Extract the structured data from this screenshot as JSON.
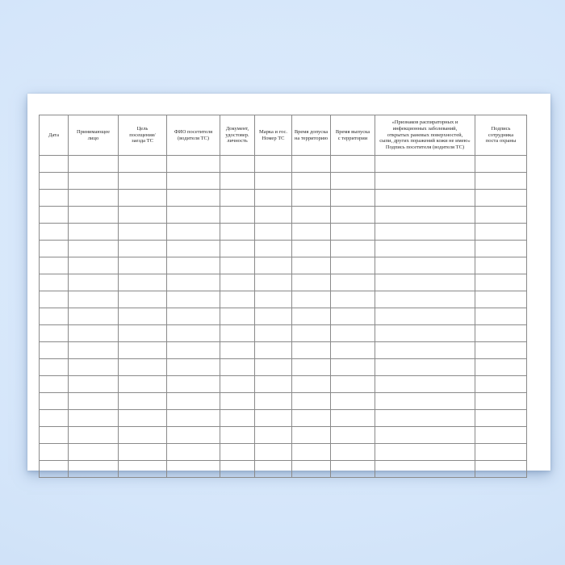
{
  "table": {
    "columns": [
      {
        "label": "Дата"
      },
      {
        "label": "Принимающее\nлицо"
      },
      {
        "label": "Цель\nпосещения/\nзаезда ТС"
      },
      {
        "label": "ФИО посетителя\n(водителя ТС)"
      },
      {
        "label": "Документ,\nудостовер.\nличность"
      },
      {
        "label": "Марка и гос.\nНомер ТС"
      },
      {
        "label": "Время допуска\nна территорию"
      },
      {
        "label": "Время выпуска\nс территории"
      },
      {
        "label": "«Признаков распираторных и\nинфекционных заболеваний,\nоткрытых раневых поверхностей,\nсыпи, других поражений кожи не имею»\nПодпись посетителя (водителя ТС)"
      },
      {
        "label": "Подпись\nсотрудника\nпоста охраны"
      }
    ],
    "body_rows": 19,
    "body_cells_content": ""
  },
  "colors": {
    "background_top": "#deecfc",
    "background_edge": "#c9ddf5",
    "paper": "#ffffff",
    "table_border": "#8a8a8a",
    "table_outer_border": "#6e6e6e",
    "header_text": "#2b2b2b"
  }
}
